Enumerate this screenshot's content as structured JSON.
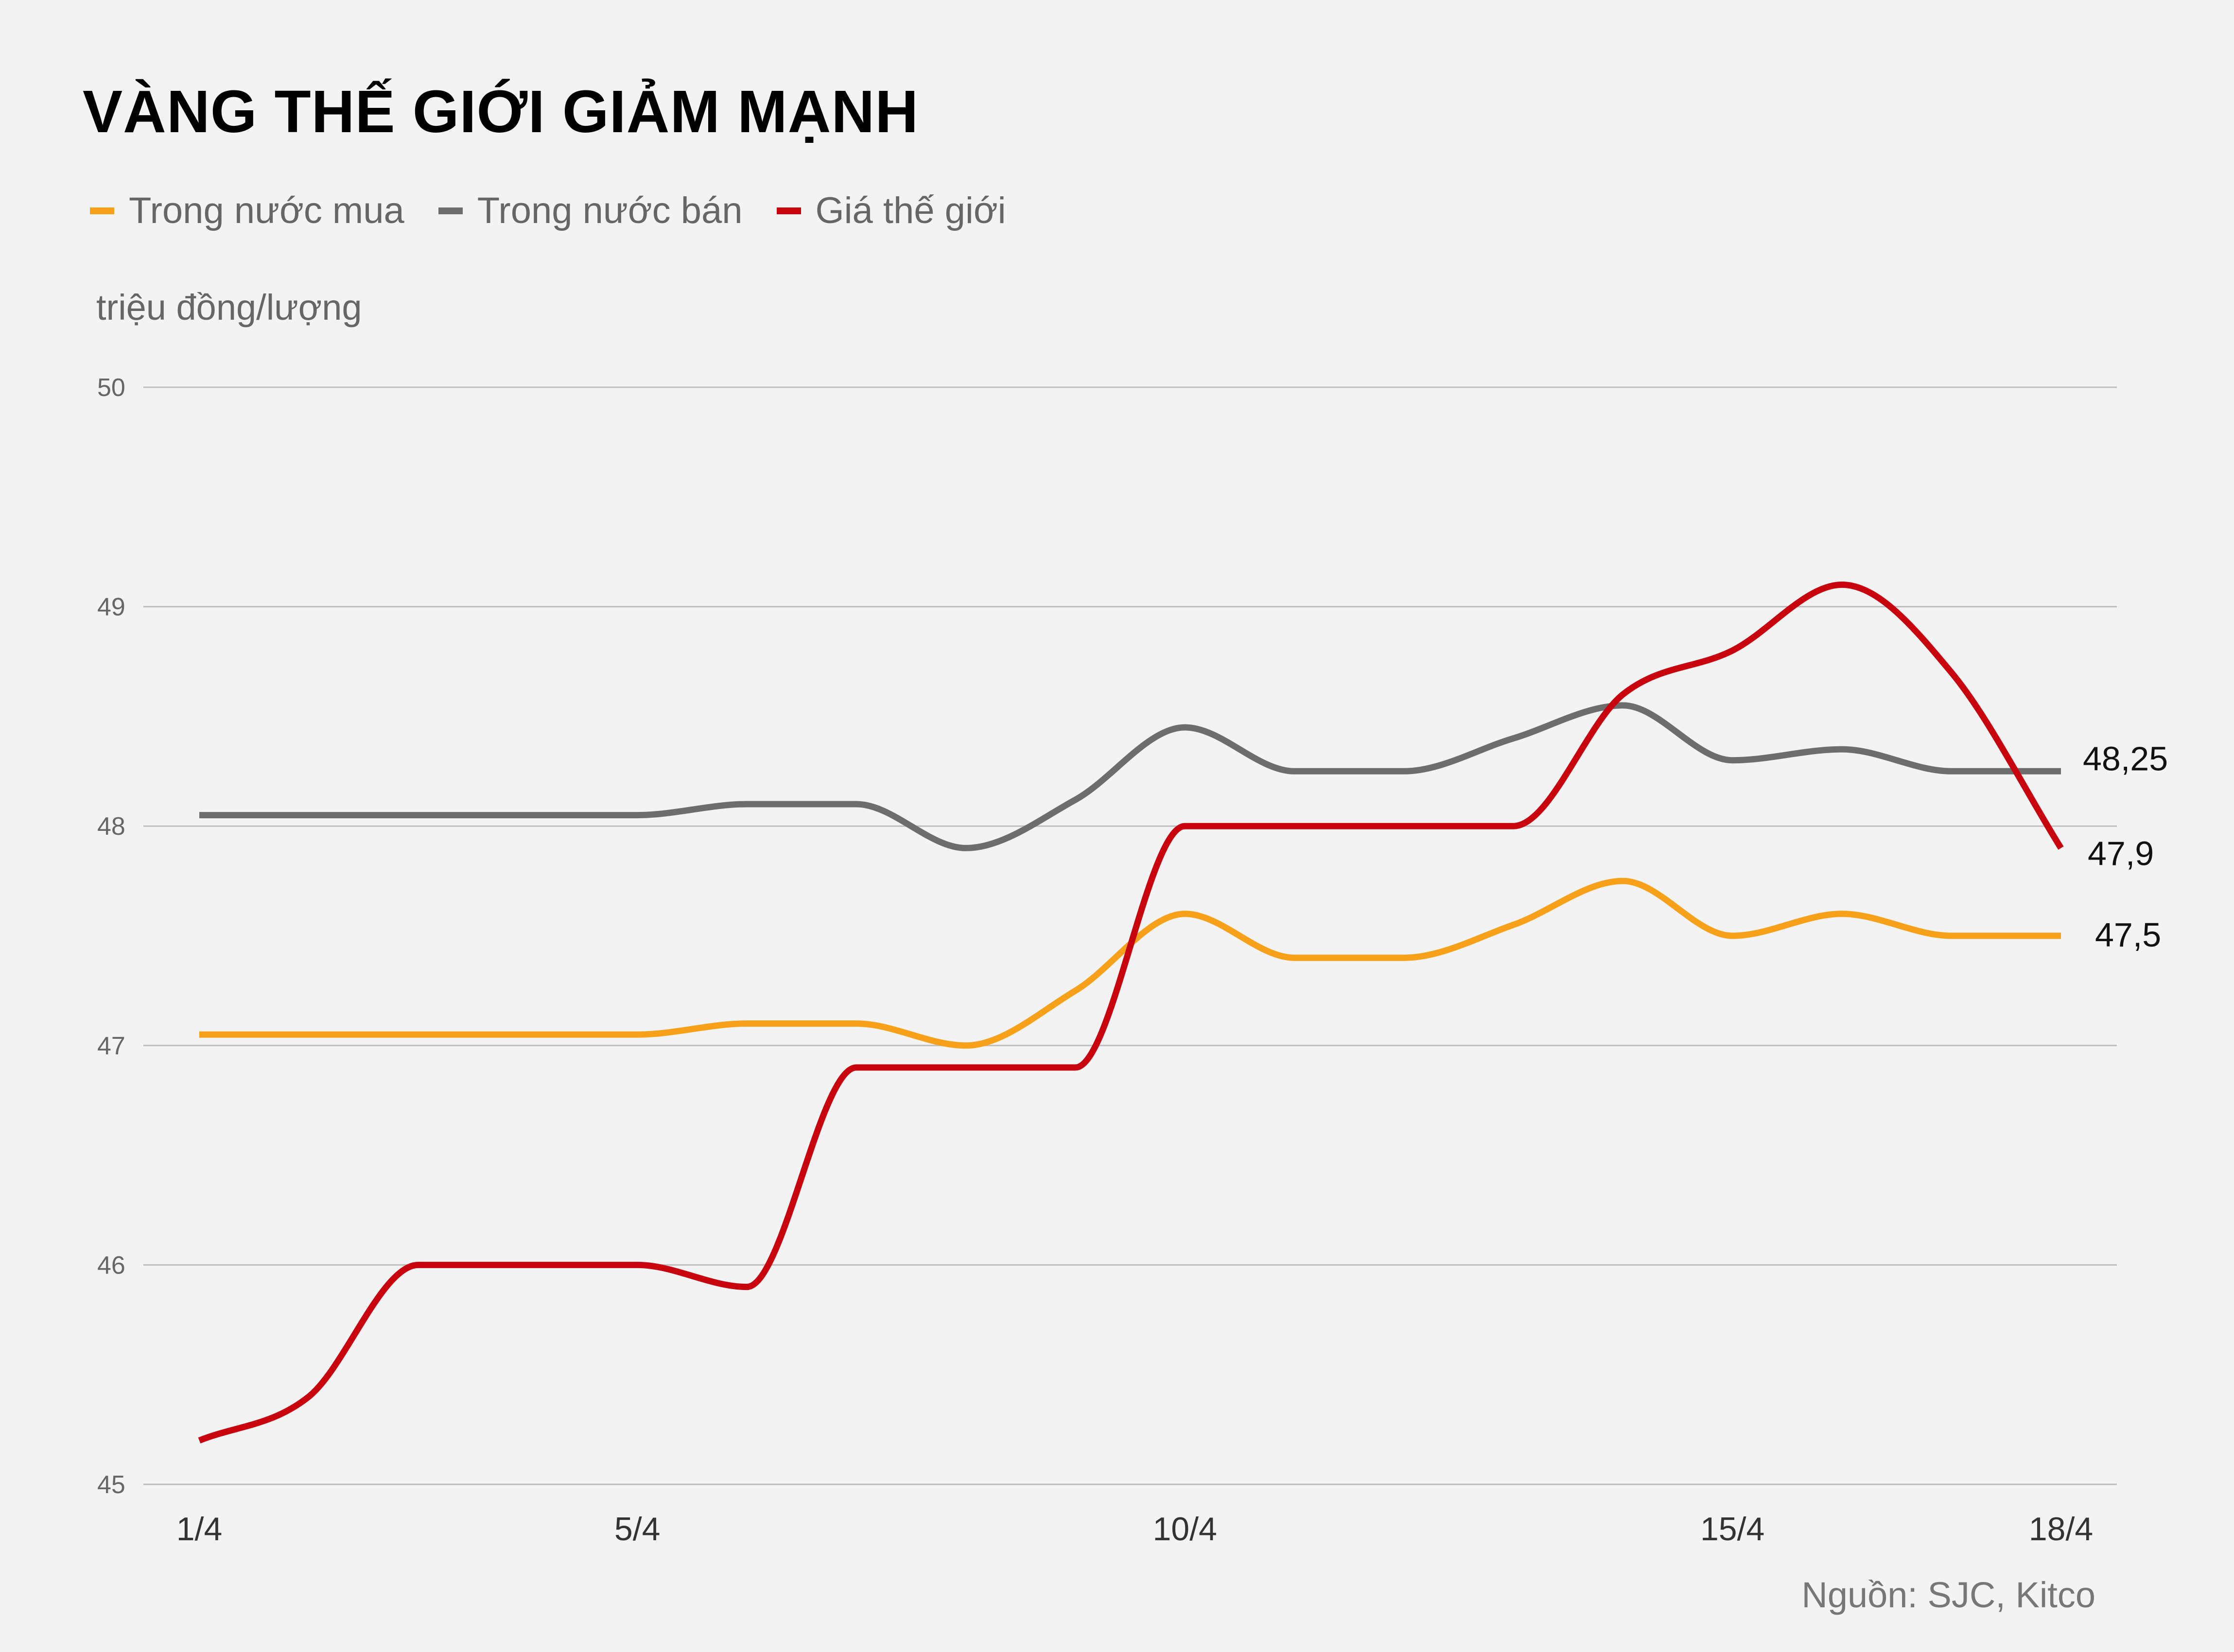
{
  "header": {
    "title": "VÀNG THẾ GIỚI GIẢM MẠNH"
  },
  "legend": [
    {
      "label": "Trong nước mua",
      "color": "#f7a01a"
    },
    {
      "label": "Trong nước bán",
      "color": "#6d6d6d"
    },
    {
      "label": "Giá thế giới",
      "color": "#c8050f"
    }
  ],
  "unit_label": "triệu đồng/lượng",
  "source": "Nguồn: SJC, Kitco",
  "chart_data": {
    "type": "line",
    "title": "VÀNG THẾ GIỚI GIẢM MẠNH",
    "xlabel": "",
    "ylabel": "triệu đồng/lượng",
    "ylim": [
      45,
      50
    ],
    "y_ticks": [
      "45",
      "46",
      "47",
      "48",
      "49",
      "50"
    ],
    "grid": true,
    "legend_position": "top-left",
    "x": [
      1,
      2,
      3,
      4,
      5,
      6,
      7,
      8,
      9,
      10,
      11,
      12,
      13,
      14,
      15,
      16,
      17,
      18
    ],
    "x_tick_labels": [
      {
        "x": 1,
        "label": "1/4"
      },
      {
        "x": 5,
        "label": "5/4"
      },
      {
        "x": 10,
        "label": "10/4"
      },
      {
        "x": 15,
        "label": "15/4"
      },
      {
        "x": 18,
        "label": "18/4"
      }
    ],
    "series": [
      {
        "name": "Trong nước mua",
        "color": "#f7a01a",
        "values": [
          47.05,
          47.05,
          47.05,
          47.05,
          47.05,
          47.1,
          47.1,
          47.0,
          47.25,
          47.6,
          47.4,
          47.4,
          47.55,
          47.75,
          47.5,
          47.6,
          47.5,
          47.5
        ],
        "end_label": "47,5"
      },
      {
        "name": "Trong nước bán",
        "color": "#6d6d6d",
        "values": [
          48.05,
          48.05,
          48.05,
          48.05,
          48.05,
          48.1,
          48.1,
          47.9,
          48.12,
          48.45,
          48.25,
          48.25,
          48.4,
          48.55,
          48.3,
          48.35,
          48.25,
          48.25
        ],
        "end_label": "48,25"
      },
      {
        "name": "Giá thế giới",
        "color": "#c8050f",
        "values": [
          45.2,
          45.4,
          46.0,
          46.0,
          46.0,
          45.9,
          46.9,
          46.9,
          46.9,
          48.0,
          48.0,
          48.0,
          48.0,
          48.6,
          48.8,
          49.1,
          48.7,
          47.9
        ],
        "end_label": "47,9"
      }
    ]
  }
}
